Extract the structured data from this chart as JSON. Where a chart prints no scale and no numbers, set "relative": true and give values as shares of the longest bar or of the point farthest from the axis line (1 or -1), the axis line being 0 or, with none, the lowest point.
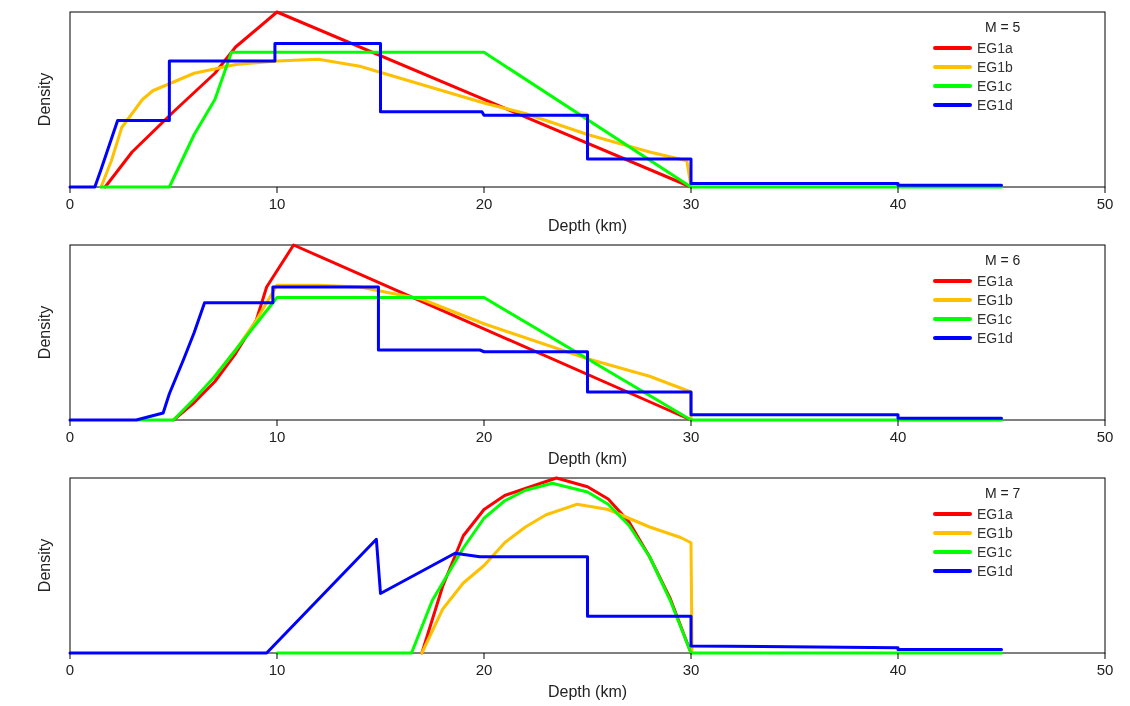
{
  "chart_data": [
    {
      "type": "line",
      "xlabel": "Depth (km)",
      "ylabel": "Density",
      "legend_title": "M = 5",
      "xlim": [
        0,
        50
      ],
      "xticks": [
        0,
        10,
        20,
        30,
        40,
        50
      ],
      "relative": true,
      "legend": "top right",
      "series": [
        {
          "name": "EG1a",
          "color": "#ff0000",
          "x": [
            1.7,
            3,
            5,
            7,
            8,
            10,
            30
          ],
          "values": [
            0,
            0.2,
            0.43,
            0.65,
            0.8,
            1,
            0
          ]
        },
        {
          "name": "EG1b",
          "color": "#ffc000",
          "x": [
            1.5,
            2,
            2.5,
            3.5,
            4,
            6,
            8,
            10,
            12,
            14,
            16,
            18,
            20,
            22,
            25,
            28,
            29.8,
            30
          ],
          "values": [
            0,
            0.15,
            0.34,
            0.5,
            0.55,
            0.65,
            0.7,
            0.72,
            0.73,
            0.69,
            0.62,
            0.55,
            0.48,
            0.42,
            0.3,
            0.2,
            0.15,
            0
          ]
        },
        {
          "name": "EG1c",
          "color": "#00ff00",
          "x": [
            1.5,
            4.8,
            6,
            7,
            7.8,
            20,
            30,
            45
          ],
          "values": [
            0,
            0,
            0.3,
            0.5,
            0.77,
            0.77,
            0,
            0
          ]
        },
        {
          "name": "EG1d",
          "color": "#0000ff",
          "x": [
            0,
            1.2,
            1.5,
            2.3,
            4.8,
            4.8,
            9.9,
            9.9,
            15,
            15,
            19.9,
            20,
            25,
            25,
            30,
            30,
            40,
            40,
            45
          ],
          "values": [
            0,
            0,
            0.1,
            0.38,
            0.38,
            0.72,
            0.72,
            0.82,
            0.82,
            0.43,
            0.43,
            0.41,
            0.41,
            0.16,
            0.16,
            0.02,
            0.02,
            0.01,
            0.01
          ]
        }
      ]
    },
    {
      "type": "line",
      "xlabel": "Depth (km)",
      "ylabel": "Density",
      "legend_title": "M = 6",
      "xlim": [
        0,
        50
      ],
      "xticks": [
        0,
        10,
        20,
        30,
        40,
        50
      ],
      "relative": true,
      "legend": "top right",
      "series": [
        {
          "name": "EG1a",
          "color": "#ff0000",
          "x": [
            5,
            6,
            7,
            8,
            9,
            9.5,
            10.8,
            30
          ],
          "values": [
            0,
            0.1,
            0.22,
            0.38,
            0.57,
            0.76,
            1,
            0
          ]
        },
        {
          "name": "EG1b",
          "color": "#ffc000",
          "x": [
            7,
            8,
            9,
            10,
            12,
            14,
            17,
            20,
            25,
            28,
            30,
            30
          ],
          "values": [
            0.25,
            0.4,
            0.57,
            0.77,
            0.77,
            0.76,
            0.69,
            0.55,
            0.35,
            0.25,
            0.16,
            0
          ]
        },
        {
          "name": "EG1c",
          "color": "#00ff00",
          "x": [
            3.3,
            5,
            6,
            7,
            8,
            9,
            10,
            20,
            30,
            45
          ],
          "values": [
            0,
            0,
            0.12,
            0.25,
            0.4,
            0.55,
            0.7,
            0.7,
            0,
            0
          ]
        },
        {
          "name": "EG1d",
          "color": "#0000ff",
          "x": [
            0,
            3.2,
            4.5,
            4.8,
            5.5,
            6,
            6.5,
            9.8,
            9.8,
            14.9,
            14.9,
            19.8,
            20,
            25,
            25,
            30,
            30,
            40,
            40,
            45
          ],
          "values": [
            0,
            0,
            0.04,
            0.15,
            0.35,
            0.5,
            0.67,
            0.67,
            0.76,
            0.76,
            0.4,
            0.4,
            0.39,
            0.39,
            0.16,
            0.16,
            0.03,
            0.03,
            0.01,
            0.01
          ]
        }
      ]
    },
    {
      "type": "line",
      "xlabel": "Depth (km)",
      "ylabel": "Density",
      "legend_title": "M = 7",
      "xlim": [
        0,
        50
      ],
      "xticks": [
        0,
        10,
        20,
        30,
        40,
        50
      ],
      "relative": true,
      "legend": "top right",
      "series": [
        {
          "name": "EG1a",
          "color": "#ff0000",
          "x": [
            17,
            18,
            19,
            20,
            21,
            22,
            23.5,
            25,
            26,
            27,
            28,
            29,
            30
          ],
          "values": [
            0,
            0.38,
            0.67,
            0.82,
            0.9,
            0.94,
            1,
            0.95,
            0.88,
            0.75,
            0.55,
            0.31,
            0
          ]
        },
        {
          "name": "EG1b",
          "color": "#ffc000",
          "x": [
            17,
            18,
            19,
            20,
            21,
            22,
            23,
            24.5,
            26,
            27,
            28,
            29.5,
            30,
            30.05
          ],
          "values": [
            0,
            0.25,
            0.4,
            0.5,
            0.63,
            0.72,
            0.79,
            0.85,
            0.82,
            0.77,
            0.72,
            0.66,
            0.63,
            0
          ]
        },
        {
          "name": "EG1c",
          "color": "#00ff00",
          "x": [
            10,
            16.5,
            17.5,
            19,
            20,
            21,
            22,
            23.3,
            25,
            26,
            27,
            28,
            29,
            30,
            45
          ],
          "values": [
            0,
            0,
            0.3,
            0.6,
            0.77,
            0.87,
            0.93,
            0.97,
            0.92,
            0.85,
            0.73,
            0.55,
            0.3,
            0,
            0
          ]
        },
        {
          "name": "EG1d",
          "color": "#0000ff",
          "x": [
            0,
            9.5,
            14.8,
            15,
            18.6,
            19.8,
            25,
            25,
            30,
            30,
            40,
            40,
            45
          ],
          "values": [
            0,
            0,
            0.65,
            0.34,
            0.57,
            0.55,
            0.55,
            0.21,
            0.21,
            0.04,
            0.03,
            0.02,
            0.02
          ]
        }
      ]
    }
  ]
}
